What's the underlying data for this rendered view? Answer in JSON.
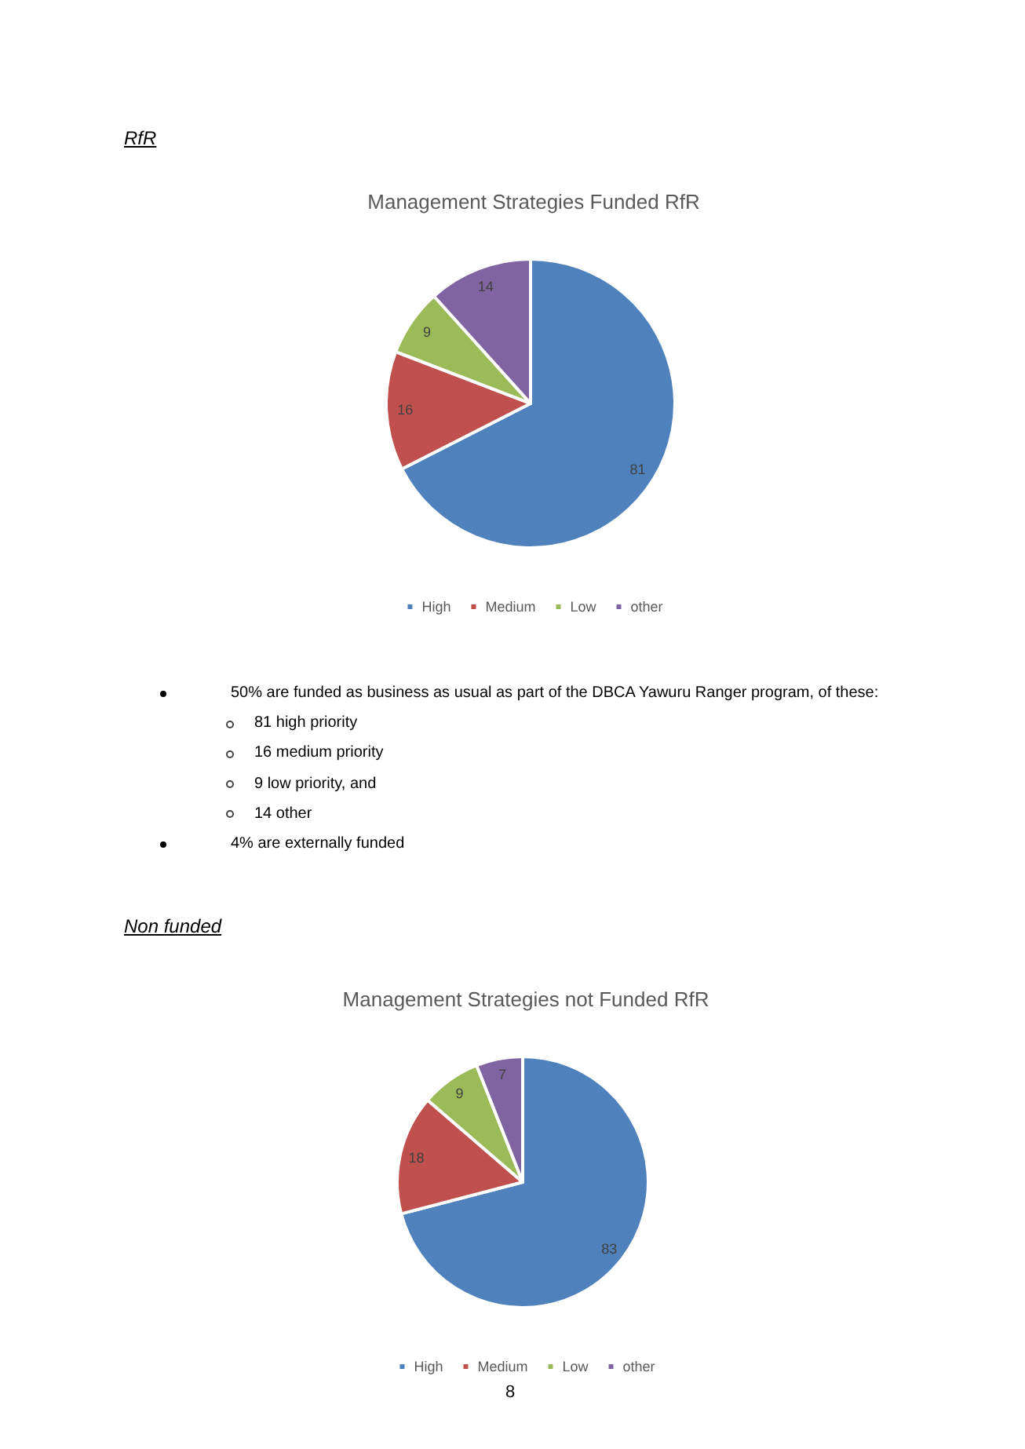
{
  "chart_data": [
    {
      "type": "pie",
      "title": "Management Strategies Funded RfR",
      "categories": [
        "High",
        "Medium",
        "Low",
        "other"
      ],
      "values": [
        81,
        16,
        9,
        14
      ],
      "colors": [
        "#4f81bd",
        "#c0504d",
        "#9bbb59",
        "#8064a2"
      ],
      "data_labels": true,
      "legend": "bottom",
      "annotations": [
        "RfR",
        "50% are funded as business as usual as part of the DBCA Yawuru Ranger program, of these:",
        "81 high priority",
        "16 medium priority",
        "9 low priority, and",
        "14 other",
        "4% are externally funded"
      ]
    },
    {
      "type": "pie",
      "title": "Management Strategies not Funded RfR",
      "categories": [
        "High",
        "Medium",
        "Low",
        "other"
      ],
      "values": [
        83,
        18,
        9,
        7
      ],
      "colors": [
        "#4f81bd",
        "#c0504d",
        "#9bbb59",
        "#8064a2"
      ],
      "data_labels": true,
      "legend": "bottom",
      "annotations": [
        "Non funded",
        "8"
      ]
    }
  ]
}
